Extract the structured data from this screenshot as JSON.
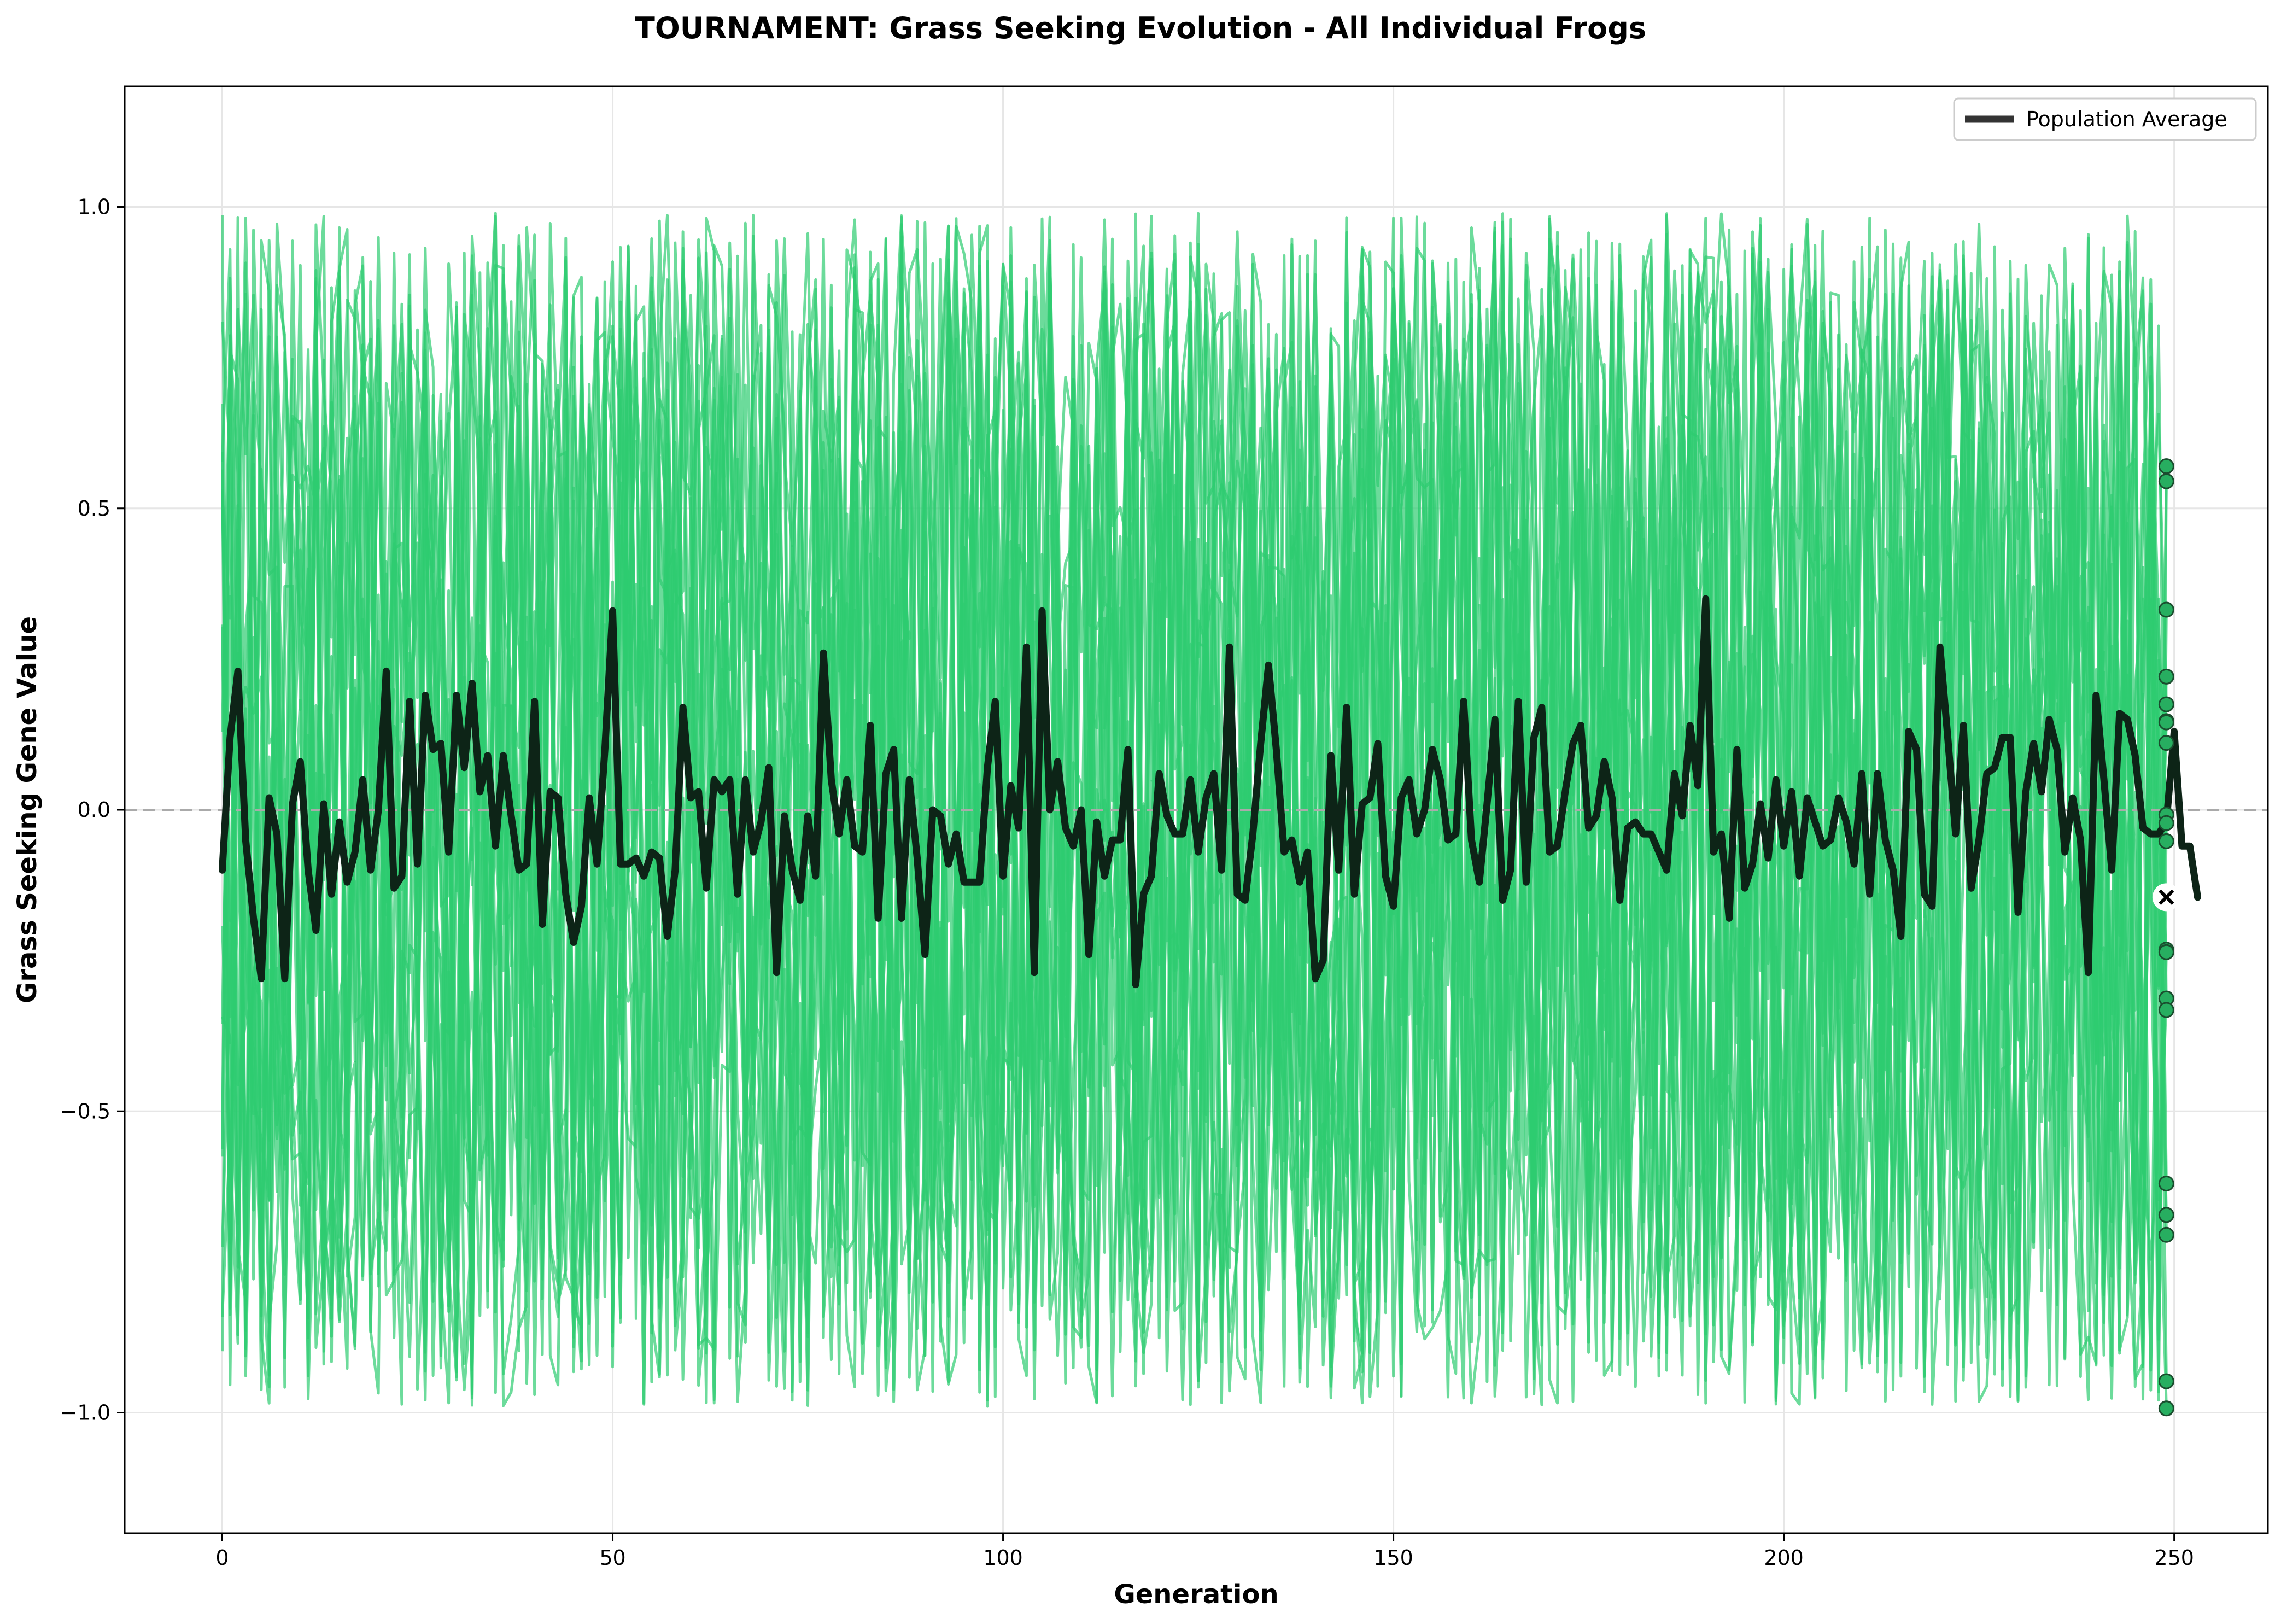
{
  "chart_data": {
    "type": "line",
    "title": "TOURNAMENT: Grass Seeking Evolution - All Individual Frogs",
    "xlabel": "Generation",
    "ylabel": "Grass Seeking Gene Value",
    "xlim": [
      -12.5,
      262
    ],
    "ylim": [
      -1.2,
      1.2
    ],
    "x_ticks": [
      0,
      50,
      100,
      150,
      200,
      250
    ],
    "x_tick_labels": [
      "0",
      "50",
      "100",
      "150",
      "200",
      "250"
    ],
    "y_ticks": [
      -1.0,
      -0.5,
      0.0,
      0.5,
      1.0
    ],
    "y_tick_labels": [
      "−1.0",
      "−0.5",
      "0.0",
      "0.5",
      "1.0"
    ],
    "grid": true,
    "reference_line": {
      "y": 0,
      "style": "dashed",
      "color": "#aaaaaa"
    },
    "legend": {
      "position": "top-right",
      "entries": [
        "Population Average"
      ]
    },
    "colors": {
      "individuals": "#2ecc71",
      "average": "#0d2417",
      "final_points": "#27ae60",
      "final_average_marker": "#000000"
    },
    "individuals": {
      "count": 20,
      "generations": 250,
      "value_range": [
        -1.0,
        1.0
      ],
      "description_values": "random-walk-free noise between -1 and 1 per generation",
      "final_values": [
        0.57,
        0.545,
        0.332,
        0.221,
        0.175,
        0.147,
        0.145,
        0.111,
        -0.008,
        -0.022,
        -0.052,
        -0.232,
        -0.236,
        -0.313,
        -0.332,
        -0.62,
        -0.672,
        -0.705,
        -0.948,
        -0.993
      ]
    },
    "series": [
      {
        "name": "Population Average",
        "x_start": 0,
        "x_end": 249,
        "values": [
          -0.1,
          0.12,
          0.23,
          -0.05,
          -0.18,
          -0.28,
          0.02,
          -0.04,
          -0.28,
          0.01,
          0.08,
          -0.1,
          -0.2,
          0.01,
          -0.14,
          -0.02,
          -0.12,
          -0.07,
          0.05,
          -0.1,
          0.0,
          0.23,
          -0.13,
          -0.11,
          0.18,
          -0.09,
          0.19,
          0.1,
          0.11,
          -0.07,
          0.19,
          0.07,
          0.21,
          0.03,
          0.09,
          -0.06,
          0.09,
          -0.01,
          -0.1,
          -0.09,
          0.18,
          -0.19,
          0.03,
          0.02,
          -0.14,
          -0.22,
          -0.16,
          0.02,
          -0.09,
          0.1,
          0.33,
          -0.09,
          -0.09,
          -0.08,
          -0.11,
          -0.07,
          -0.08,
          -0.21,
          -0.1,
          0.17,
          0.02,
          0.03,
          -0.13,
          0.05,
          0.03,
          0.05,
          -0.14,
          0.05,
          -0.07,
          -0.02,
          0.07,
          -0.27,
          -0.01,
          -0.1,
          -0.15,
          -0.01,
          -0.11,
          0.26,
          0.05,
          -0.04,
          0.05,
          -0.06,
          -0.07,
          0.14,
          -0.18,
          0.06,
          0.1,
          -0.18,
          0.05,
          -0.08,
          -0.24,
          0.0,
          -0.01,
          -0.09,
          -0.04,
          -0.12,
          -0.12,
          -0.12,
          0.07,
          0.18,
          -0.11,
          0.04,
          -0.03,
          0.27,
          -0.27,
          0.33,
          0.0,
          0.08,
          -0.03,
          -0.06,
          0.0,
          -0.24,
          -0.02,
          -0.11,
          -0.05,
          -0.05,
          0.1,
          -0.29,
          -0.14,
          -0.11,
          0.06,
          -0.01,
          -0.04,
          -0.04,
          0.05,
          -0.07,
          0.02,
          0.06,
          -0.1,
          0.27,
          -0.14,
          -0.15,
          -0.04,
          0.11,
          0.24,
          0.1,
          -0.07,
          -0.05,
          -0.12,
          -0.07,
          -0.28,
          -0.25,
          0.09,
          -0.1,
          0.17,
          -0.14,
          0.01,
          0.02,
          0.11,
          -0.11,
          -0.16,
          0.02,
          0.05,
          -0.04,
          0.0,
          0.1,
          0.05,
          -0.05,
          -0.04,
          0.18,
          -0.05,
          -0.12,
          0.01,
          0.15,
          -0.15,
          -0.1,
          0.18,
          -0.12,
          0.12,
          0.17,
          -0.07,
          -0.06,
          0.03,
          0.11,
          0.14,
          -0.03,
          -0.01,
          0.08,
          0.02,
          -0.15,
          -0.03,
          -0.02,
          -0.04,
          -0.04,
          -0.07,
          -0.1,
          0.06,
          -0.01,
          0.14,
          0.04,
          0.35,
          -0.07,
          -0.04,
          -0.18,
          0.1,
          -0.13,
          -0.09,
          0.01,
          -0.08,
          0.05,
          -0.06,
          0.03,
          -0.11,
          0.02,
          -0.02,
          -0.06,
          -0.05,
          0.02,
          -0.02,
          -0.09,
          0.06,
          -0.14,
          0.06,
          -0.05,
          -0.1,
          -0.21,
          0.13,
          0.1,
          -0.14,
          -0.16,
          0.27,
          0.12,
          -0.04,
          0.14,
          -0.13,
          -0.05,
          0.06,
          0.07,
          0.12,
          0.12,
          -0.17,
          0.03,
          0.11,
          0.03,
          0.15,
          0.1,
          -0.07,
          0.02,
          -0.05,
          -0.27,
          0.19,
          0.05,
          -0.1,
          0.16,
          0.15,
          0.09,
          -0.03,
          -0.04,
          -0.04,
          -0.02,
          0.13,
          -0.06,
          -0.06,
          -0.145
        ],
        "final_value": -0.145
      }
    ]
  }
}
